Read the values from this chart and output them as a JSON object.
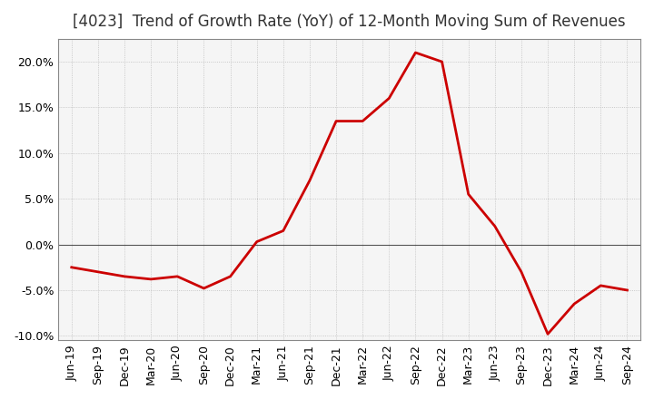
{
  "title": "[4023]  Trend of Growth Rate (YoY) of 12-Month Moving Sum of Revenues",
  "x_labels": [
    "Jun-19",
    "Sep-19",
    "Dec-19",
    "Mar-20",
    "Jun-20",
    "Sep-20",
    "Dec-20",
    "Mar-21",
    "Jun-21",
    "Sep-21",
    "Dec-21",
    "Mar-22",
    "Jun-22",
    "Sep-22",
    "Dec-22",
    "Mar-23",
    "Jun-23",
    "Sep-23",
    "Dec-23",
    "Mar-24",
    "Jun-24",
    "Sep-24"
  ],
  "y_values": [
    -2.5,
    -3.0,
    -3.5,
    -3.8,
    -3.5,
    -4.8,
    -3.5,
    0.3,
    1.5,
    7.0,
    13.5,
    13.5,
    16.0,
    21.0,
    20.0,
    5.5,
    2.0,
    -3.0,
    -9.8,
    -6.5,
    -4.5,
    -5.0
  ],
  "line_color": "#cc0000",
  "line_width": 2.0,
  "ylim": [
    -10.5,
    22.5
  ],
  "yticks": [
    -10.0,
    -5.0,
    0.0,
    5.0,
    10.0,
    15.0,
    20.0
  ],
  "background_color": "#ffffff",
  "plot_bg_color": "#f5f5f5",
  "grid_color": "#bbbbbb",
  "zero_line_color": "#555555",
  "title_fontsize": 12,
  "tick_fontsize": 9
}
